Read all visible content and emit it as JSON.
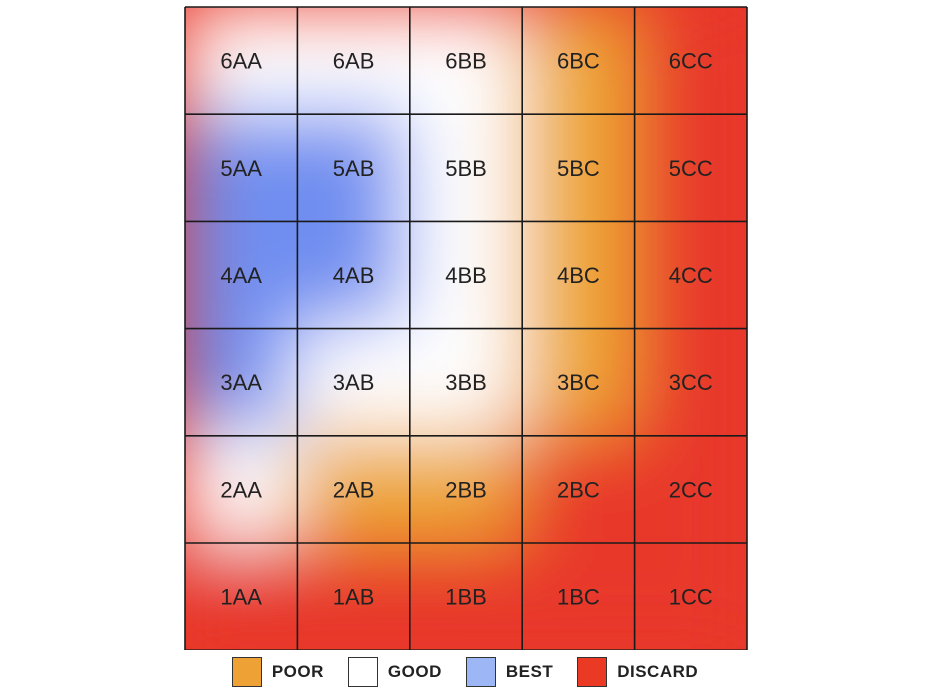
{
  "chart_data": {
    "type": "heatmap",
    "title": "",
    "rows": [
      "6",
      "5",
      "4",
      "3",
      "2",
      "1"
    ],
    "columns": [
      "AA",
      "AB",
      "BB",
      "BC",
      "CC"
    ],
    "cells": [
      [
        "6AA",
        "6AB",
        "6BB",
        "6BC",
        "6CC"
      ],
      [
        "5AA",
        "5AB",
        "5BB",
        "5BC",
        "5CC"
      ],
      [
        "4AA",
        "4AB",
        "4BB",
        "4BC",
        "4CC"
      ],
      [
        "3AA",
        "3AB",
        "3BB",
        "3BC",
        "3CC"
      ],
      [
        "2AA",
        "2AB",
        "2BB",
        "2BC",
        "2CC"
      ],
      [
        "1AA",
        "1AB",
        "1BB",
        "1BC",
        "1CC"
      ]
    ],
    "category_values": [
      [
        "GOOD",
        "GOOD",
        "GOOD",
        "POOR",
        "DISCARD"
      ],
      [
        "BEST",
        "BEST",
        "GOOD",
        "POOR",
        "DISCARD"
      ],
      [
        "BEST",
        "BEST",
        "GOOD",
        "POOR",
        "DISCARD"
      ],
      [
        "BEST",
        "GOOD",
        "GOOD",
        "POOR",
        "DISCARD"
      ],
      [
        "GOOD",
        "POOR",
        "POOR",
        "DISCARD",
        "DISCARD"
      ],
      [
        "DISCARD",
        "DISCARD",
        "DISCARD",
        "DISCARD",
        "DISCARD"
      ]
    ],
    "legend": {
      "placement": "bottom",
      "items": [
        {
          "label": "POOR",
          "color": "#eea235"
        },
        {
          "label": "GOOD",
          "color": "#ffffff"
        },
        {
          "label": "BEST",
          "color": "#9db6f5"
        },
        {
          "label": "DISCARD",
          "color": "#ea3a24"
        }
      ]
    },
    "category_colors": {
      "DISCARD": "#e8382a",
      "POOR": "#eeaa35",
      "GOOD": "#ffffff",
      "BEST": "#6f8ef0"
    },
    "grid": true
  }
}
